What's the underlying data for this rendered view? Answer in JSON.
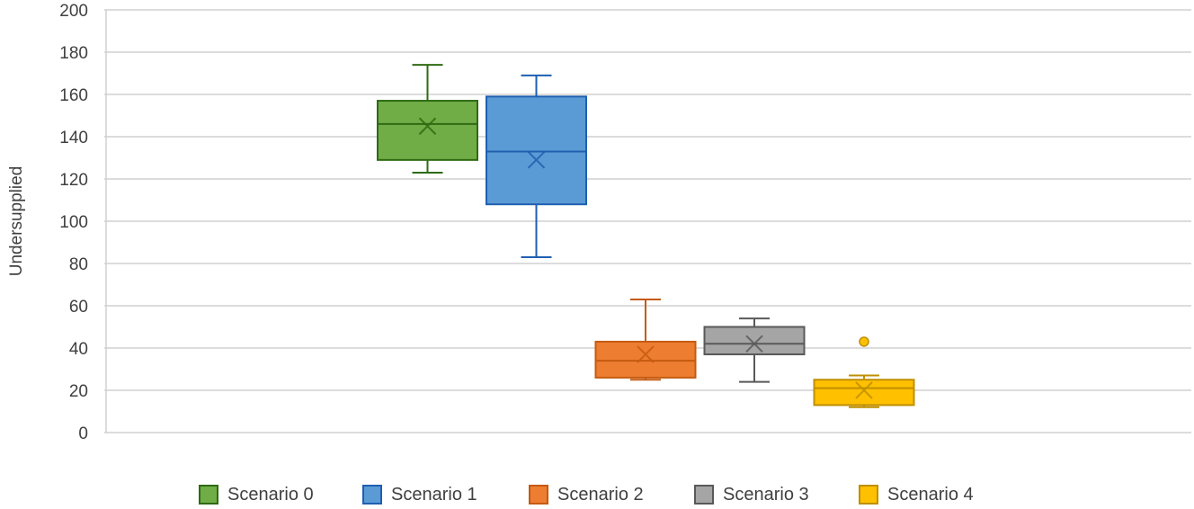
{
  "chart_data": {
    "type": "box",
    "title": "",
    "xlabel": "",
    "ylabel": "Undersupplied",
    "ylim": [
      0,
      200
    ],
    "yticks": [
      0,
      20,
      40,
      60,
      80,
      100,
      120,
      140,
      160,
      180,
      200
    ],
    "grid": true,
    "legend_position": "bottom",
    "series": [
      {
        "name": "Scenario 0",
        "color": "#70AD47",
        "edge": "#2E6B12",
        "min": 123,
        "q1": 129,
        "median": 146,
        "mean": 145,
        "q3": 157,
        "max": 174,
        "outliers": []
      },
      {
        "name": "Scenario 1",
        "color": "#5B9BD5",
        "edge": "#1F5FB0",
        "min": 83,
        "q1": 108,
        "median": 133,
        "mean": 129,
        "q3": 159,
        "max": 169,
        "outliers": []
      },
      {
        "name": "Scenario 2",
        "color": "#ED7D31",
        "edge": "#C55A11",
        "min": 25,
        "q1": 26,
        "median": 34,
        "mean": 37,
        "q3": 43,
        "max": 63,
        "outliers": []
      },
      {
        "name": "Scenario 3",
        "color": "#A5A5A5",
        "edge": "#595959",
        "min": 24,
        "q1": 37,
        "median": 42,
        "mean": 42,
        "q3": 50,
        "max": 54,
        "outliers": []
      },
      {
        "name": "Scenario 4",
        "color": "#FFC000",
        "edge": "#BF8F00",
        "min": 12,
        "q1": 13,
        "median": 21,
        "mean": 20,
        "q3": 25,
        "max": 27,
        "outliers": [
          43
        ]
      }
    ]
  },
  "legend": {
    "items": [
      {
        "label": "Scenario 0",
        "color": "#70AD47",
        "edge": "#2E6B12"
      },
      {
        "label": "Scenario 1",
        "color": "#5B9BD5",
        "edge": "#1F5FB0"
      },
      {
        "label": "Scenario 2",
        "color": "#ED7D31",
        "edge": "#C55A11"
      },
      {
        "label": "Scenario 3",
        "color": "#A5A5A5",
        "edge": "#595959"
      },
      {
        "label": "Scenario 4",
        "color": "#FFC000",
        "edge": "#BF8F00"
      }
    ]
  }
}
